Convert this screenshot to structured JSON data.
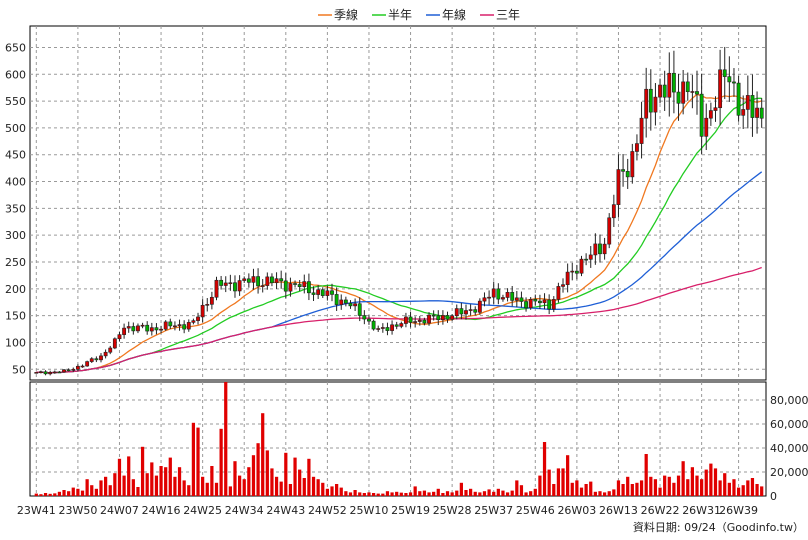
{
  "chart_data": {
    "type": "candlestick+volume",
    "legend": [
      {
        "label": "季線",
        "color": "#f07820"
      },
      {
        "label": "半年",
        "color": "#22cc22"
      },
      {
        "label": "年線",
        "color": "#1f5fd6"
      },
      {
        "label": "三年",
        "color": "#d8206a"
      }
    ],
    "price_ylim": [
      30,
      690
    ],
    "price_ticks": [
      50,
      100,
      150,
      200,
      250,
      300,
      350,
      400,
      450,
      500,
      550,
      600,
      650
    ],
    "volume_ylim": [
      0,
      95000
    ],
    "volume_ticks": [
      {
        "v": 0,
        "label": "0"
      },
      {
        "v": 20000,
        "label": "20,000"
      },
      {
        "v": 40000,
        "label": "40,000"
      },
      {
        "v": 60000,
        "label": "60,000"
      },
      {
        "v": 80000,
        "label": "80,000"
      }
    ],
    "x_labels": [
      {
        "i": 0,
        "label": "23W41"
      },
      {
        "i": 9,
        "label": "23W50"
      },
      {
        "i": 18,
        "label": "24W07"
      },
      {
        "i": 27,
        "label": "24W16"
      },
      {
        "i": 36,
        "label": "24W25"
      },
      {
        "i": 45,
        "label": "24W34"
      },
      {
        "i": 54,
        "label": "24W43"
      },
      {
        "i": 63,
        "label": "24W52"
      },
      {
        "i": 72,
        "label": "25W10"
      },
      {
        "i": 81,
        "label": "25W19"
      },
      {
        "i": 90,
        "label": "25W28"
      },
      {
        "i": 99,
        "label": "25W37"
      },
      {
        "i": 108,
        "label": "25W46"
      },
      {
        "i": 117,
        "label": "26W03"
      },
      {
        "i": 126,
        "label": "26W13"
      },
      {
        "i": 135,
        "label": "26W22"
      },
      {
        "i": 144,
        "label": "26W31"
      },
      {
        "i": 152,
        "label": "26W39"
      }
    ],
    "close_anchors": [
      [
        0,
        43
      ],
      [
        6,
        46
      ],
      [
        10,
        58
      ],
      [
        14,
        75
      ],
      [
        17,
        100
      ],
      [
        19,
        130
      ],
      [
        24,
        125
      ],
      [
        28,
        130
      ],
      [
        34,
        135
      ],
      [
        36,
        165
      ],
      [
        39,
        205
      ],
      [
        44,
        212
      ],
      [
        49,
        215
      ],
      [
        54,
        210
      ],
      [
        59,
        200
      ],
      [
        63,
        188
      ],
      [
        67,
        175
      ],
      [
        71,
        148
      ],
      [
        74,
        120
      ],
      [
        77,
        132
      ],
      [
        81,
        140
      ],
      [
        86,
        145
      ],
      [
        92,
        155
      ],
      [
        96,
        170
      ],
      [
        99,
        195
      ],
      [
        103,
        180
      ],
      [
        107,
        175
      ],
      [
        111,
        172
      ],
      [
        114,
        210
      ],
      [
        117,
        245
      ],
      [
        120,
        260
      ],
      [
        123,
        290
      ],
      [
        126,
        400
      ],
      [
        129,
        450
      ],
      [
        132,
        540
      ],
      [
        135,
        580
      ],
      [
        138,
        560
      ],
      [
        141,
        590
      ],
      [
        144,
        500
      ],
      [
        147,
        560
      ],
      [
        150,
        600
      ],
      [
        153,
        530
      ]
    ],
    "volumes": [
      2000,
      1500,
      2500,
      1800,
      2200,
      3500,
      5000,
      4000,
      7000,
      6000,
      4500,
      14000,
      9000,
      6000,
      13000,
      16000,
      9000,
      19000,
      31000,
      17000,
      33000,
      14000,
      7500,
      41000,
      19000,
      28000,
      17000,
      25000,
      24000,
      32000,
      16000,
      24000,
      13000,
      9000,
      61000,
      57000,
      16000,
      11000,
      25000,
      11000,
      56000,
      99000,
      8000,
      29000,
      17000,
      14000,
      24000,
      34000,
      44000,
      69000,
      38000,
      23000,
      16000,
      12000,
      36000,
      10000,
      32000,
      22000,
      15000,
      31000,
      16000,
      14000,
      11000,
      6000,
      8000,
      10000,
      7000,
      4000,
      3000,
      5000,
      3000,
      2500,
      3000,
      2500,
      2000,
      2000,
      4000,
      3000,
      3500,
      2800,
      2500,
      3000,
      8000,
      4000,
      4500,
      3000,
      3500,
      6000,
      2500,
      4000,
      3000,
      4500,
      11000,
      5000,
      6000,
      3500,
      3000,
      4000,
      5500,
      3500,
      6000,
      4500,
      3000,
      4500,
      13000,
      9000,
      3000,
      4000,
      6000,
      17000,
      45000,
      22000,
      10000,
      23000,
      23000,
      34000,
      11000,
      13000,
      7000,
      10000,
      12000,
      3500,
      4000,
      3000,
      4000,
      5500,
      13000,
      10000,
      16000,
      10000,
      11000,
      13000,
      35000,
      16000,
      14000,
      7000,
      17000,
      16000,
      11000,
      17000,
      29000,
      14000,
      24000,
      17000,
      14000,
      22000,
      27000,
      23000,
      13000,
      19000,
      11000,
      14000,
      7000,
      9000,
      13000,
      15000,
      10000,
      8000
    ],
    "source_label": "資料日期: 09/24（Goodinfo.tw）"
  }
}
